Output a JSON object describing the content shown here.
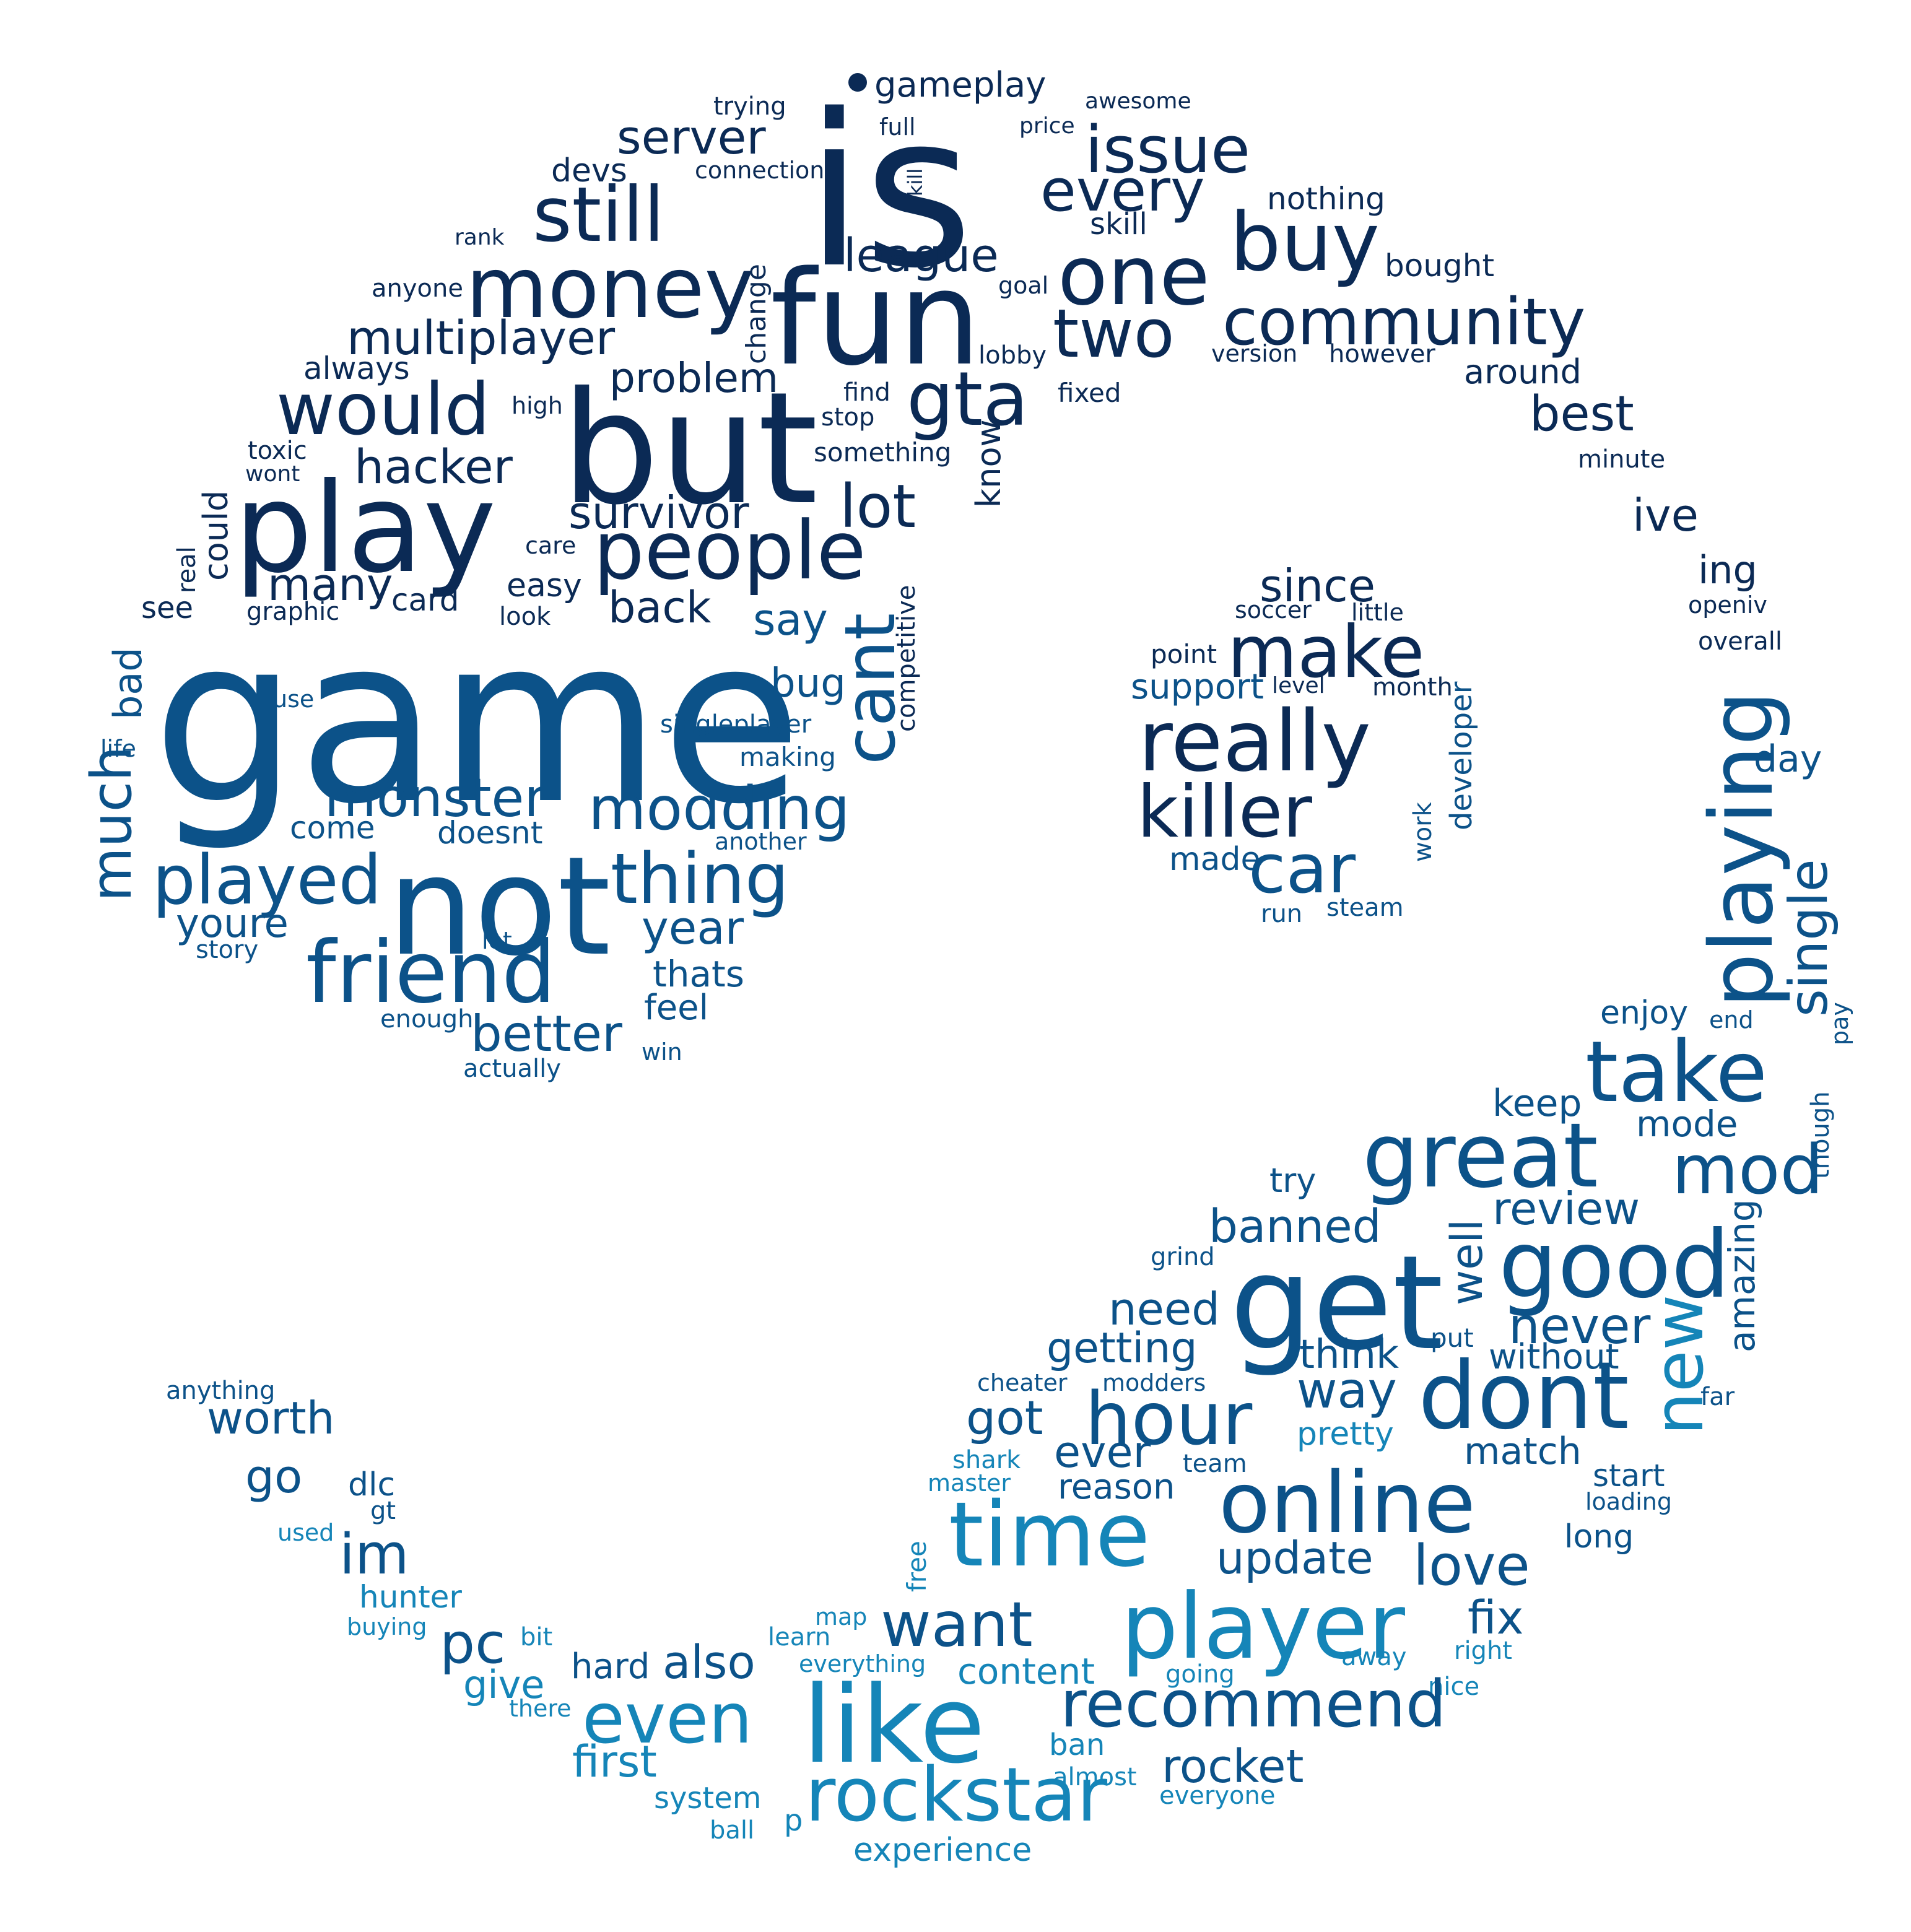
{
  "palette": {
    "dark": "#0b2a55",
    "mid": "#0c5289",
    "light": "#1585b8",
    "background": "#ffffff"
  },
  "words": [
    {
      "text": "gameplay"
    },
    {
      "text": "awesome"
    },
    {
      "text": "trying"
    },
    {
      "text": "full"
    },
    {
      "text": "price"
    },
    {
      "text": "is"
    },
    {
      "text": "server"
    },
    {
      "text": "kill"
    },
    {
      "text": "issue"
    },
    {
      "text": "devs"
    },
    {
      "text": "connection"
    },
    {
      "text": "every"
    },
    {
      "text": "nothing"
    },
    {
      "text": "still"
    },
    {
      "text": "skill"
    },
    {
      "text": "rank"
    },
    {
      "text": "buy"
    },
    {
      "text": "league"
    },
    {
      "text": "bought"
    },
    {
      "text": "money"
    },
    {
      "text": "one"
    },
    {
      "text": "anyone"
    },
    {
      "text": "goal"
    },
    {
      "text": "change"
    },
    {
      "text": "fun"
    },
    {
      "text": "community"
    },
    {
      "text": "two"
    },
    {
      "text": "multiplayer"
    },
    {
      "text": "lobby"
    },
    {
      "text": "version"
    },
    {
      "text": "however"
    },
    {
      "text": "always"
    },
    {
      "text": "around"
    },
    {
      "text": "problem"
    },
    {
      "text": "would"
    },
    {
      "text": "find"
    },
    {
      "text": "fixed"
    },
    {
      "text": "high"
    },
    {
      "text": "gta"
    },
    {
      "text": "stop"
    },
    {
      "text": "best"
    },
    {
      "text": "but"
    },
    {
      "text": "toxic"
    },
    {
      "text": "something"
    },
    {
      "text": "minute"
    },
    {
      "text": "wont"
    },
    {
      "text": "hacker"
    },
    {
      "text": "know"
    },
    {
      "text": "play"
    },
    {
      "text": "lot"
    },
    {
      "text": "ive"
    },
    {
      "text": "could"
    },
    {
      "text": "survivor"
    },
    {
      "text": "care"
    },
    {
      "text": "real"
    },
    {
      "text": "people"
    },
    {
      "text": "many"
    },
    {
      "text": "easy"
    },
    {
      "text": "ing"
    },
    {
      "text": "since"
    },
    {
      "text": "see"
    },
    {
      "text": "card"
    },
    {
      "text": "back"
    },
    {
      "text": "competitive"
    },
    {
      "text": "graphic"
    },
    {
      "text": "look"
    },
    {
      "text": "say"
    },
    {
      "text": "soccer"
    },
    {
      "text": "little"
    },
    {
      "text": "openiv"
    },
    {
      "text": "make"
    },
    {
      "text": "point"
    },
    {
      "text": "overall"
    },
    {
      "text": "playing"
    },
    {
      "text": "game"
    },
    {
      "text": "bad"
    },
    {
      "text": "bug"
    },
    {
      "text": "support"
    },
    {
      "text": "level"
    },
    {
      "text": "month"
    },
    {
      "text": "use"
    },
    {
      "text": "cant"
    },
    {
      "text": "singleplayer"
    },
    {
      "text": "really"
    },
    {
      "text": "developer"
    },
    {
      "text": "life"
    },
    {
      "text": "making"
    },
    {
      "text": "day"
    },
    {
      "text": "much"
    },
    {
      "text": "monster"
    },
    {
      "text": "killer"
    },
    {
      "text": "modding"
    },
    {
      "text": "single"
    },
    {
      "text": "come"
    },
    {
      "text": "doesnt"
    },
    {
      "text": "work"
    },
    {
      "text": "another"
    },
    {
      "text": "not"
    },
    {
      "text": "made"
    },
    {
      "text": "car"
    },
    {
      "text": "played"
    },
    {
      "text": "thing"
    },
    {
      "text": "youre"
    },
    {
      "text": "run"
    },
    {
      "text": "steam"
    },
    {
      "text": "let"
    },
    {
      "text": "year"
    },
    {
      "text": "story"
    },
    {
      "text": "friend"
    },
    {
      "text": "thats"
    },
    {
      "text": "feel"
    },
    {
      "text": "enjoy"
    },
    {
      "text": "end"
    },
    {
      "text": "pay"
    },
    {
      "text": "enough"
    },
    {
      "text": "better"
    },
    {
      "text": "win"
    },
    {
      "text": "take"
    },
    {
      "text": "actually"
    },
    {
      "text": "keep"
    },
    {
      "text": "though"
    },
    {
      "text": "mode"
    },
    {
      "text": "great"
    },
    {
      "text": "mod"
    },
    {
      "text": "try"
    },
    {
      "text": "review"
    },
    {
      "text": "banned"
    },
    {
      "text": "amazing"
    },
    {
      "text": "grind"
    },
    {
      "text": "good"
    },
    {
      "text": "well"
    },
    {
      "text": "get"
    },
    {
      "text": "need"
    },
    {
      "text": "never"
    },
    {
      "text": "getting"
    },
    {
      "text": "put"
    },
    {
      "text": "think"
    },
    {
      "text": "without"
    },
    {
      "text": "new"
    },
    {
      "text": "anything"
    },
    {
      "text": "cheater"
    },
    {
      "text": "modders"
    },
    {
      "text": "far"
    },
    {
      "text": "way"
    },
    {
      "text": "dont"
    },
    {
      "text": "worth"
    },
    {
      "text": "got"
    },
    {
      "text": "hour"
    },
    {
      "text": "pretty"
    },
    {
      "text": "ever"
    },
    {
      "text": "shark"
    },
    {
      "text": "team"
    },
    {
      "text": "match"
    },
    {
      "text": "go"
    },
    {
      "text": "master"
    },
    {
      "text": "reason"
    },
    {
      "text": "start"
    },
    {
      "text": "dlc"
    },
    {
      "text": "gt"
    },
    {
      "text": "loading"
    },
    {
      "text": "online"
    },
    {
      "text": "time"
    },
    {
      "text": "used"
    },
    {
      "text": "free"
    },
    {
      "text": "long"
    },
    {
      "text": "im"
    },
    {
      "text": "update"
    },
    {
      "text": "love"
    },
    {
      "text": "hunter"
    },
    {
      "text": "want"
    },
    {
      "text": "player"
    },
    {
      "text": "buying"
    },
    {
      "text": "map"
    },
    {
      "text": "fix"
    },
    {
      "text": "pc"
    },
    {
      "text": "bit"
    },
    {
      "text": "learn"
    },
    {
      "text": "right"
    },
    {
      "text": "hard"
    },
    {
      "text": "also"
    },
    {
      "text": "everything"
    },
    {
      "text": "content"
    },
    {
      "text": "away"
    },
    {
      "text": "give"
    },
    {
      "text": "going"
    },
    {
      "text": "nice"
    },
    {
      "text": "there"
    },
    {
      "text": "even"
    },
    {
      "text": "like"
    },
    {
      "text": "recommend"
    },
    {
      "text": "first"
    },
    {
      "text": "ban"
    },
    {
      "text": "rocket"
    },
    {
      "text": "almost"
    },
    {
      "text": "system"
    },
    {
      "text": "everyone"
    },
    {
      "text": "rockstar"
    },
    {
      "text": "ball"
    },
    {
      "text": "p"
    },
    {
      "text": "experience"
    }
  ]
}
